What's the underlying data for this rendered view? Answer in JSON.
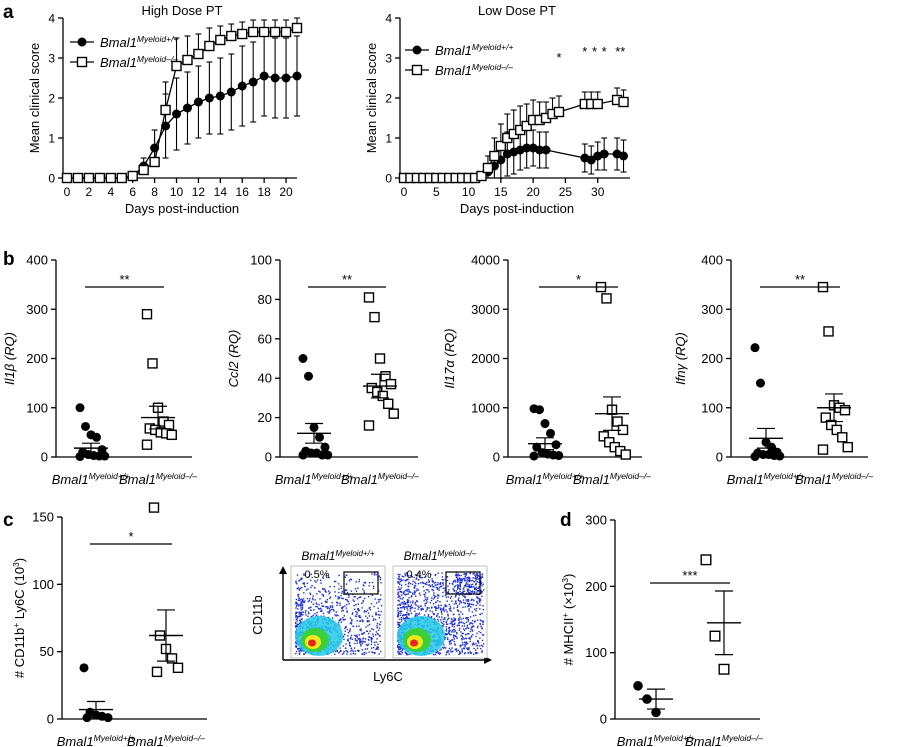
{
  "panels": {
    "a": "a",
    "b": "b",
    "c": "c",
    "d": "d"
  },
  "colors": {
    "ink": "#000000",
    "facs_blue": "#1f2fd6",
    "facs_cyan": "#22c9e8",
    "facs_green": "#3ccf3a",
    "facs_yellow": "#f2e61e",
    "facs_red": "#e3271c"
  },
  "chart_data": [
    {
      "id": "a-high",
      "type": "line",
      "title": "High Dose PT",
      "xlabel": "Days post-induction",
      "ylabel": "Mean clinical score",
      "xlim": [
        0,
        21
      ],
      "ylim": [
        0,
        4
      ],
      "xticks": [
        0,
        2,
        4,
        6,
        8,
        10,
        12,
        14,
        16,
        18,
        20
      ],
      "yticks": [
        0,
        1,
        2,
        3,
        4
      ],
      "legend": [
        {
          "name": "Bmal1",
          "sup": "Myeloid+/+",
          "marker": "filled-circle"
        },
        {
          "name": "Bmal1",
          "sup": "Myeloid–/–",
          "marker": "open-square"
        }
      ],
      "series": [
        {
          "name": "Bmal1 Myeloid+/+",
          "marker": "filled-circle",
          "x": [
            0,
            1,
            2,
            3,
            4,
            5,
            6,
            7,
            8,
            9,
            10,
            11,
            12,
            13,
            14,
            15,
            16,
            17,
            18,
            19,
            20,
            21
          ],
          "y": [
            0,
            0,
            0,
            0,
            0,
            0,
            0.05,
            0.3,
            0.75,
            1.3,
            1.6,
            1.75,
            1.9,
            2.0,
            2.05,
            2.15,
            2.3,
            2.4,
            2.55,
            2.5,
            2.5,
            2.55
          ],
          "err": [
            0,
            0,
            0,
            0,
            0,
            0,
            0.05,
            0.2,
            0.45,
            0.8,
            0.9,
            0.9,
            0.9,
            0.9,
            0.95,
            0.95,
            1.0,
            1.0,
            1.0,
            1.0,
            1.0,
            1.0
          ]
        },
        {
          "name": "Bmal1 Myeloid–/–",
          "marker": "open-square",
          "x": [
            0,
            1,
            2,
            3,
            4,
            5,
            6,
            7,
            8,
            9,
            10,
            11,
            12,
            13,
            14,
            15,
            16,
            17,
            18,
            19,
            20,
            21
          ],
          "y": [
            0,
            0,
            0,
            0,
            0,
            0,
            0.05,
            0.2,
            0.4,
            1.7,
            2.8,
            2.95,
            3.1,
            3.3,
            3.45,
            3.55,
            3.6,
            3.65,
            3.65,
            3.65,
            3.65,
            3.75
          ],
          "err": [
            0,
            0,
            0,
            0,
            0,
            0,
            0.05,
            0.15,
            0.3,
            0.7,
            0.7,
            0.6,
            0.5,
            0.45,
            0.35,
            0.3,
            0.3,
            0.3,
            0.3,
            0.3,
            0.3,
            0.25
          ]
        }
      ]
    },
    {
      "id": "a-low",
      "type": "line",
      "title": "Low Dose PT",
      "xlabel": "Days post-induction",
      "ylabel": "Mean clinical score",
      "xlim": [
        0,
        35
      ],
      "ylim": [
        0,
        4
      ],
      "xticks": [
        0,
        5,
        10,
        15,
        20,
        25,
        30
      ],
      "yticks": [
        0,
        1,
        2,
        3,
        4
      ],
      "legend": [
        {
          "name": "Bmal1",
          "sup": "Myeloid+/+",
          "marker": "filled-circle"
        },
        {
          "name": "Bmal1",
          "sup": "Myeloid–/–",
          "marker": "open-square"
        }
      ],
      "annotations": [
        {
          "x": 24,
          "y": 2.9,
          "text": "*"
        },
        {
          "x": 28,
          "y": 3.05,
          "text": "*"
        },
        {
          "x": 29.5,
          "y": 3.05,
          "text": "*"
        },
        {
          "x": 31,
          "y": 3.05,
          "text": "*"
        },
        {
          "x": 33.5,
          "y": 3.05,
          "text": "**"
        }
      ],
      "series": [
        {
          "name": "Bmal1 Myeloid+/+",
          "marker": "filled-circle",
          "x": [
            0,
            1,
            2,
            3,
            4,
            5,
            6,
            7,
            8,
            9,
            10,
            11,
            12,
            13,
            14,
            15,
            16,
            17,
            18,
            19,
            20,
            21,
            22,
            28,
            29,
            30,
            31,
            33,
            34
          ],
          "y": [
            0,
            0,
            0,
            0,
            0,
            0,
            0,
            0,
            0,
            0,
            0,
            0,
            0.05,
            0.15,
            0.3,
            0.45,
            0.6,
            0.65,
            0.7,
            0.75,
            0.75,
            0.7,
            0.7,
            0.5,
            0.45,
            0.55,
            0.6,
            0.6,
            0.55
          ],
          "err": [
            0,
            0,
            0,
            0,
            0,
            0,
            0,
            0,
            0,
            0,
            0,
            0,
            0.05,
            0.2,
            0.35,
            0.45,
            0.55,
            0.55,
            0.5,
            0.5,
            0.45,
            0.45,
            0.45,
            0.35,
            0.35,
            0.35,
            0.4,
            0.4,
            0.4
          ]
        },
        {
          "name": "Bmal1 Myeloid–/–",
          "marker": "open-square",
          "x": [
            0,
            1,
            2,
            3,
            4,
            5,
            6,
            7,
            8,
            9,
            10,
            11,
            12,
            13,
            14,
            15,
            16,
            17,
            18,
            19,
            20,
            21,
            22,
            23,
            24,
            28,
            29,
            30,
            33,
            34
          ],
          "y": [
            0,
            0,
            0,
            0,
            0,
            0,
            0,
            0,
            0,
            0,
            0,
            0,
            0.05,
            0.25,
            0.55,
            0.8,
            1.0,
            1.1,
            1.2,
            1.3,
            1.45,
            1.45,
            1.5,
            1.6,
            1.65,
            1.85,
            1.85,
            1.85,
            1.95,
            1.9
          ],
          "err": [
            0,
            0,
            0,
            0,
            0,
            0,
            0,
            0,
            0,
            0,
            0,
            0,
            0.05,
            0.3,
            0.45,
            0.55,
            0.6,
            0.6,
            0.6,
            0.55,
            0.5,
            0.45,
            0.4,
            0.4,
            0.4,
            0.3,
            0.3,
            0.3,
            0.3,
            0.3
          ]
        }
      ]
    },
    {
      "id": "b-il1b",
      "type": "scatter",
      "ylabel_gene": "Il1β",
      "ylabel_suffix": " (RQ)",
      "ylim": [
        0,
        400
      ],
      "yticks": [
        0,
        100,
        200,
        300,
        400
      ],
      "significance": "**",
      "categories": [
        {
          "name": "Bmal1",
          "sup": "Myeloid+/+",
          "marker": "filled-circle",
          "mean": 18,
          "sem": 10,
          "values": [
            100,
            62,
            45,
            40,
            15,
            10,
            5,
            3,
            2,
            2,
            1
          ]
        },
        {
          "name": "Bmal1",
          "sup": "Myeloid–/–",
          "marker": "open-square",
          "mean": 80,
          "sem": 23,
          "values": [
            290,
            190,
            100,
            72,
            65,
            58,
            55,
            50,
            48,
            45,
            25
          ]
        }
      ]
    },
    {
      "id": "b-ccl2",
      "type": "scatter",
      "ylabel_gene": "Ccl2",
      "ylabel_suffix": " (RQ)",
      "ylim": [
        0,
        100
      ],
      "yticks": [
        0,
        20,
        40,
        60,
        80,
        100
      ],
      "significance": "**",
      "categories": [
        {
          "name": "Bmal1",
          "sup": "Myeloid+/+",
          "marker": "filled-circle",
          "mean": 12,
          "sem": 5,
          "values": [
            50,
            41,
            15,
            10,
            5,
            3,
            2,
            2,
            1,
            1,
            1
          ]
        },
        {
          "name": "Bmal1",
          "sup": "Myeloid–/–",
          "marker": "open-square",
          "mean": 36,
          "sem": 6,
          "values": [
            81,
            71,
            50,
            41,
            37,
            35,
            33,
            31,
            27,
            22,
            16
          ]
        }
      ]
    },
    {
      "id": "b-il17a",
      "type": "scatter",
      "ylabel_gene": "Il17α",
      "ylabel_suffix": " (RQ)",
      "ylim": [
        0,
        4000
      ],
      "yticks": [
        0,
        1000,
        2000,
        3000,
        4000
      ],
      "significance": "*",
      "categories": [
        {
          "name": "Bmal1",
          "sup": "Myeloid+/+",
          "marker": "filled-circle",
          "mean": 270,
          "sem": 120,
          "values": [
            980,
            960,
            680,
            480,
            250,
            200,
            90,
            60,
            40,
            30,
            20
          ]
        },
        {
          "name": "Bmal1",
          "sup": "Myeloid–/–",
          "marker": "open-square",
          "mean": 880,
          "sem": 340,
          "values": [
            3450,
            3220,
            960,
            720,
            550,
            420,
            300,
            200,
            120,
            50
          ]
        }
      ]
    },
    {
      "id": "b-ifng",
      "type": "scatter",
      "ylabel_gene": "Ifnγ",
      "ylabel_suffix": " (RQ)",
      "ylim": [
        0,
        400
      ],
      "yticks": [
        0,
        100,
        200,
        300,
        400
      ],
      "significance": "**",
      "categories": [
        {
          "name": "Bmal1",
          "sup": "Myeloid+/+",
          "marker": "filled-circle",
          "mean": 38,
          "sem": 20,
          "values": [
            222,
            150,
            30,
            20,
            10,
            8,
            5,
            5,
            3,
            2,
            1
          ]
        },
        {
          "name": "Bmal1",
          "sup": "Myeloid–/–",
          "marker": "open-square",
          "mean": 100,
          "sem": 28,
          "values": [
            345,
            255,
            105,
            100,
            95,
            80,
            65,
            55,
            40,
            20,
            15
          ]
        }
      ]
    },
    {
      "id": "c-scatter",
      "type": "scatter",
      "ylabel": "# CD11b",
      "ylabel_sup1": "+",
      "ylabel_mid": " Ly6C (10",
      "ylabel_sup2": "3",
      "ylabel_end": ")",
      "ylim": [
        0,
        150
      ],
      "yticks": [
        0,
        50,
        100,
        150
      ],
      "significance": "*",
      "categories": [
        {
          "name": "Bmal1",
          "sup": "Myeloid+/+",
          "marker": "filled-circle",
          "mean": 7,
          "sem": 6,
          "values": [
            38,
            5,
            3,
            2,
            1,
            1
          ]
        },
        {
          "name": "Bmal1",
          "sup": "Myeloid–/–",
          "marker": "open-square",
          "mean": 62,
          "sem": 19,
          "values": [
            157,
            62,
            52,
            45,
            38,
            35
          ]
        }
      ]
    },
    {
      "id": "c-facs",
      "type": "scatter",
      "xlabel": "Ly6C",
      "ylabel": "CD11b",
      "plots": [
        {
          "name": "Bmal1",
          "sup": "Myeloid+/+",
          "gate_percent": "0.5%"
        },
        {
          "name": "Bmal1",
          "sup": "Myeloid–/–",
          "gate_percent": "0.4%"
        }
      ]
    },
    {
      "id": "d-mhcii",
      "type": "scatter",
      "ylabel": "# MHCII",
      "ylabel_sup1": "+",
      "ylabel_mid": " (×10",
      "ylabel_sup2": "3",
      "ylabel_end": ")",
      "ylim": [
        0,
        300
      ],
      "yticks": [
        0,
        100,
        200,
        300
      ],
      "significance": "***",
      "categories": [
        {
          "name": "Bmal1",
          "sup": "Myeloid+/+",
          "marker": "filled-circle",
          "mean": 30,
          "sem": 15,
          "values": [
            50,
            30,
            10
          ]
        },
        {
          "name": "Bmal1",
          "sup": "Myeloid–/–",
          "marker": "open-square",
          "mean": 145,
          "sem": 48,
          "values": [
            240,
            125,
            75
          ]
        }
      ]
    }
  ]
}
